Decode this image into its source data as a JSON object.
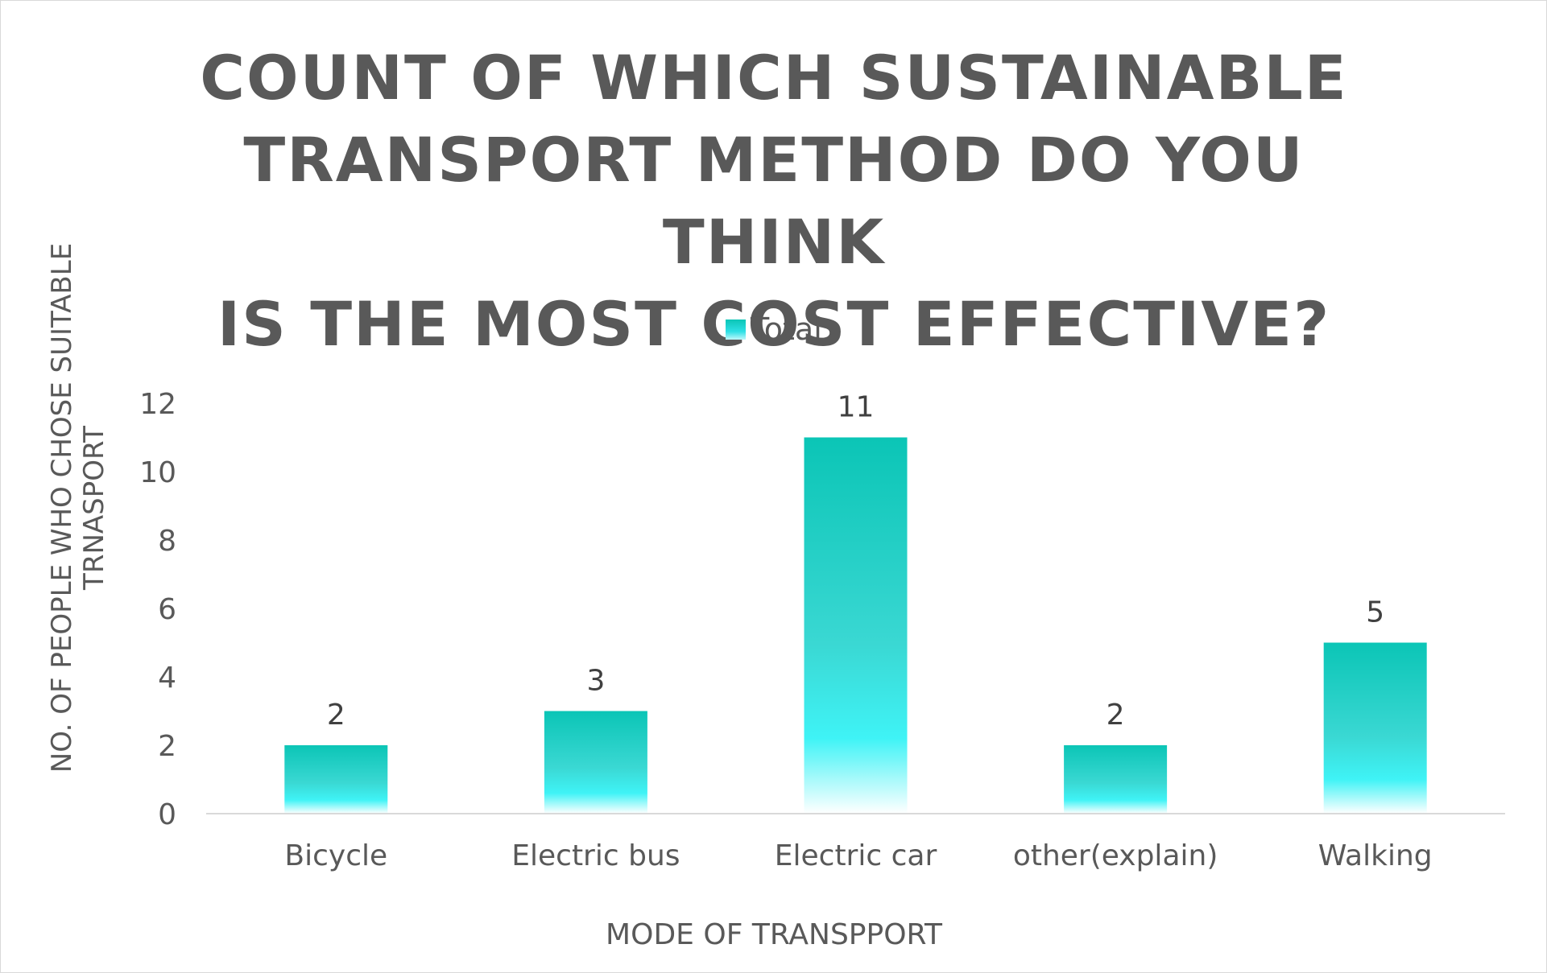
{
  "chart_data": {
    "type": "bar",
    "title": "COUNT OF WHICH SUSTAINABLE TRANSPORT METHOD DO YOU THINK IS THE MOST COST EFFECTIVE?",
    "title_lines": [
      "COUNT OF WHICH SUSTAINABLE",
      "TRANSPORT METHOD DO YOU THINK",
      "IS THE MOST COST EFFECTIVE?"
    ],
    "xlabel": "MODE OF TRANSPPORT",
    "ylabel": "NO. OF PEOPLE WHO CHOSE SUITABLE TRNASPORT",
    "ylabel_lines": [
      "NO. OF PEOPLE WHO CHOSE SUITABLE",
      "TRNASPORT"
    ],
    "categories": [
      "Bicycle",
      "Electric bus",
      "Electric car",
      "other(explain)",
      "Walking"
    ],
    "series": [
      {
        "name": "Total",
        "values": [
          2,
          3,
          11,
          2,
          5
        ],
        "color": "#0bc5b6"
      }
    ],
    "ylim": [
      0,
      12
    ],
    "yticks": [
      0,
      2,
      4,
      6,
      8,
      10,
      12
    ],
    "grid": false,
    "legend_position": "top",
    "data_labels": true
  }
}
